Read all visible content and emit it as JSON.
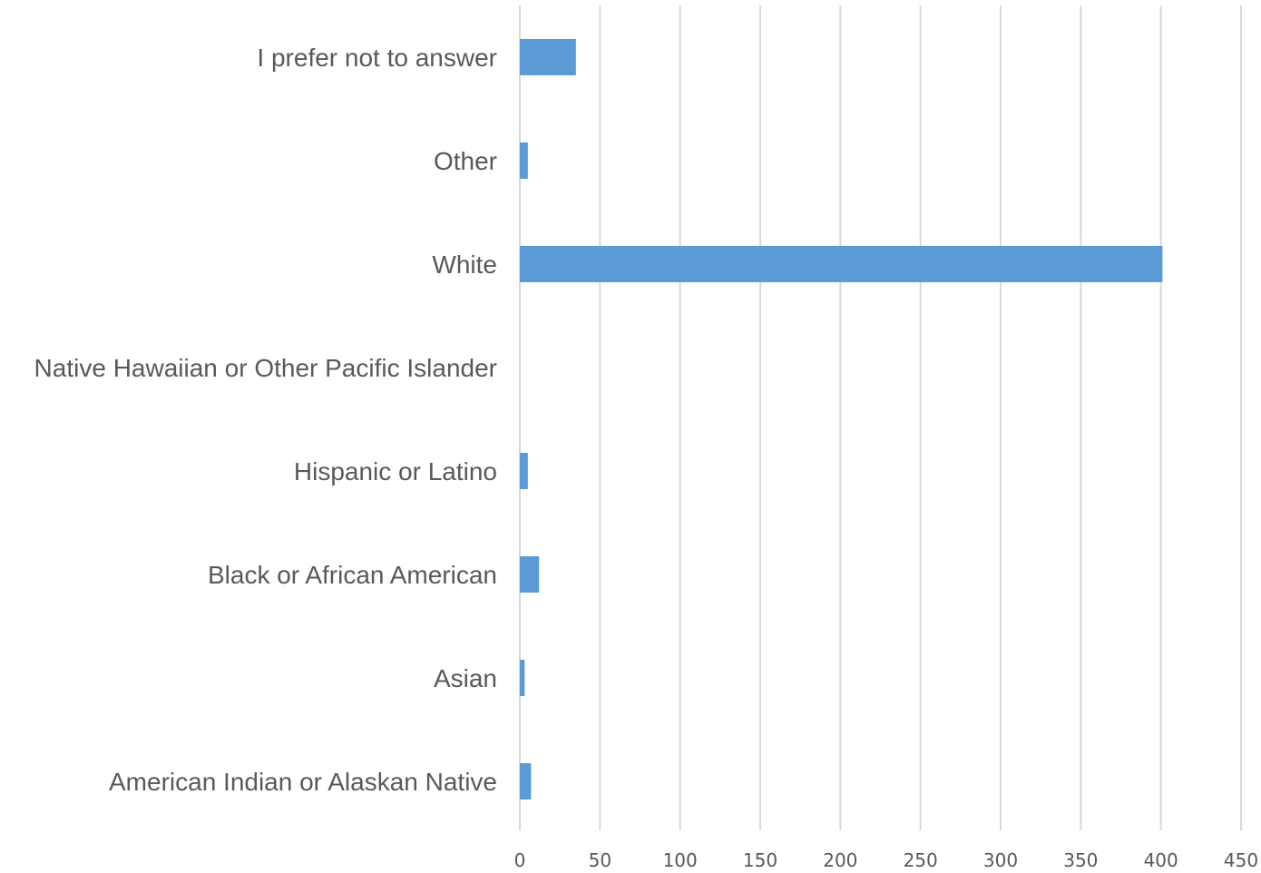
{
  "chart_data": {
    "type": "bar",
    "orientation": "horizontal",
    "title": "",
    "xlabel": "",
    "ylabel": "",
    "categories": [
      "American Indian or Alaskan Native",
      "Asian",
      "Black or African American",
      "Hispanic or Latino",
      "Native Hawaiian or Other Pacific Islander",
      "White",
      "Other",
      "I prefer not to answer"
    ],
    "values": [
      7,
      3,
      12,
      5,
      0,
      401,
      5,
      35
    ],
    "xlim": [
      0,
      450
    ],
    "xticks": [
      0,
      50,
      100,
      150,
      200,
      250,
      300,
      350,
      400,
      450
    ],
    "grid": "vertical",
    "legend": "none",
    "bar_color": "#5b9bd5",
    "grid_color": "#d9d9d9",
    "text_color": "#595959"
  }
}
